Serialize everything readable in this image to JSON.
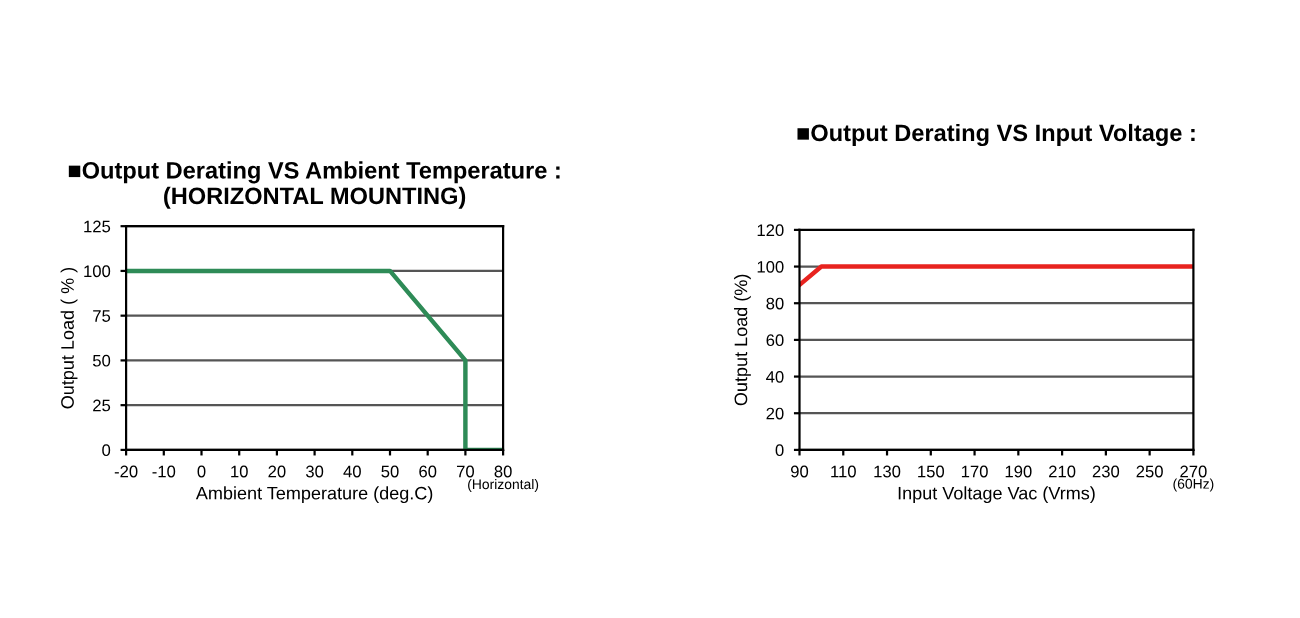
{
  "chart_data": [
    {
      "type": "line",
      "title": "■Output Derating VS Ambient Temperature :\n(HORIZONTAL MOUNTING)",
      "xlabel": "Ambient Temperature (deg.C)",
      "ylabel": "Output Load ( % )",
      "series": [
        {
          "color": "#2e8b57",
          "x": [
            -20,
            50,
            70,
            70,
            80
          ],
          "values": [
            100,
            100,
            50,
            0,
            0
          ]
        }
      ],
      "xlim": [
        -20,
        80
      ],
      "xticks": [
        -20,
        -10,
        0,
        10,
        20,
        30,
        40,
        50,
        60,
        70,
        80
      ],
      "ylim": [
        0,
        125
      ],
      "yticks": [
        0,
        25,
        50,
        75,
        100,
        125
      ],
      "grid": "y",
      "annotations": [
        "(Horizontal)"
      ]
    },
    {
      "type": "line",
      "title": "■Output Derating VS Input Voltage :",
      "xlabel": "Input Voltage Vac (Vrms)",
      "ylabel": "Output Load (%)",
      "series": [
        {
          "color": "#e8231f",
          "x": [
            90,
            100,
            270
          ],
          "values": [
            90,
            100,
            100
          ]
        }
      ],
      "xlim": [
        90,
        270
      ],
      "xticks": [
        90,
        110,
        130,
        150,
        170,
        190,
        210,
        230,
        250,
        270
      ],
      "ylim": [
        0,
        120
      ],
      "yticks": [
        0,
        20,
        40,
        60,
        80,
        100,
        120
      ],
      "grid": "y",
      "annotations": [
        "(60Hz)"
      ]
    }
  ]
}
